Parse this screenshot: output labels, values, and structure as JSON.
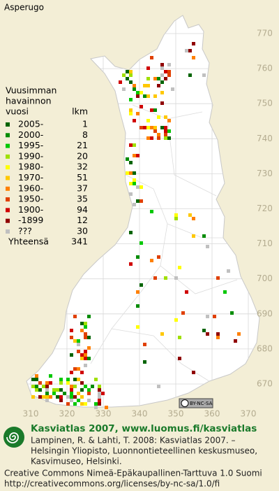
{
  "map": {
    "title": "Asperugo",
    "legend": {
      "title_lines": [
        "Vuusimman",
        "havainnon",
        "vuosi"
      ],
      "count_header": "lkm",
      "entries": [
        {
          "label": "2005-",
          "count": 1,
          "color": "#006400"
        },
        {
          "label": "2000-",
          "count": 8,
          "color": "#008c00"
        },
        {
          "label": "1995-",
          "count": 21,
          "color": "#00c800"
        },
        {
          "label": "1990-",
          "count": 20,
          "color": "#a0e000"
        },
        {
          "label": "1980-",
          "count": 32,
          "color": "#ffff00"
        },
        {
          "label": "1970-",
          "count": 51,
          "color": "#ffc800"
        },
        {
          "label": "1960-",
          "count": 37,
          "color": "#ff8000"
        },
        {
          "label": "1950-",
          "count": 35,
          "color": "#e04000"
        },
        {
          "label": "1900-",
          "count": 94,
          "color": "#d00000"
        },
        {
          "label": "-1899",
          "count": 12,
          "color": "#900000"
        },
        {
          "label": "???",
          "count": 30,
          "color": "#c0c0c0"
        }
      ],
      "total_label": "Yhteensä",
      "total": 341
    },
    "yticks": [
      770,
      760,
      750,
      740,
      730,
      720,
      710,
      700,
      690,
      680,
      670
    ],
    "ylim": [
      670,
      770
    ],
    "xticks": [
      310,
      320,
      330,
      340,
      350,
      360,
      370
    ],
    "xlim": [
      310,
      370
    ],
    "cc_badge": "BY-NC-SA"
  },
  "footer": {
    "heading": "Kasviatlas 2007, www.luomus.fi/kasviatlas",
    "citation": [
      "Lampinen, R. & Lahti, T. 2008: Kasviatlas 2007. –",
      "Helsingin Yliopisto, Luonnontieteellinen keskusmuseo,",
      "Kasvimuseo, Helsinki."
    ],
    "license": [
      "Creative Commons Nimeä-Epäkaupallinen-Tarttuva 1.0 Suomi",
      "http://creativecommons.org/licenses/by-nc-sa/1.0/fi"
    ]
  }
}
